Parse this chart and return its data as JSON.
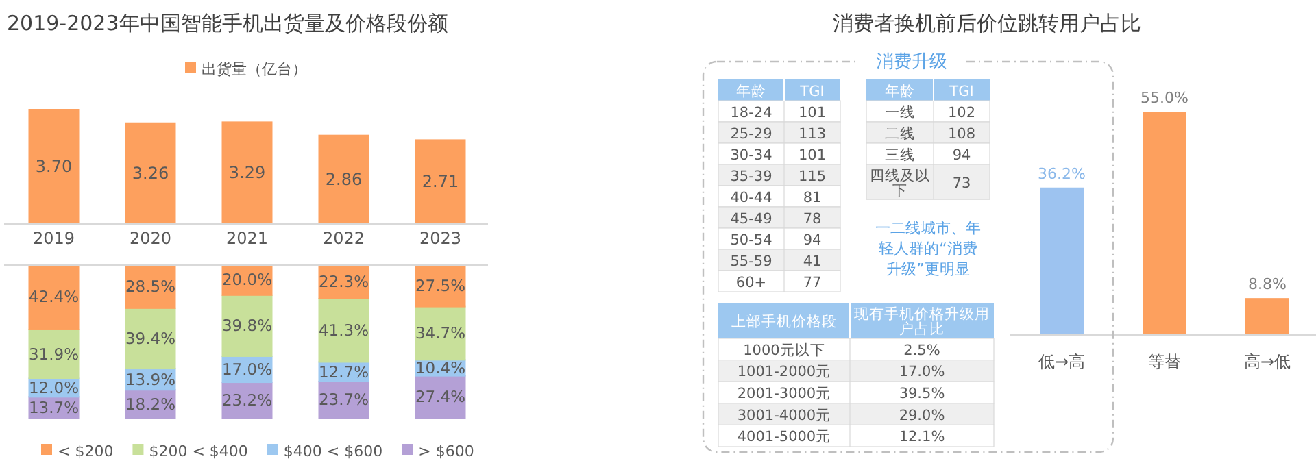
{
  "chart_data": [
    {
      "type": "bar",
      "title": "2019-2023年中国智能手机出货量及价格段份额",
      "categories": [
        null,
        null,
        null,
        null,
        null
      ],
      "legend": "top",
      "series": [
        {
          "name": "出货量（亿台）",
          "color": "#fda05e",
          "values": [
            3.7,
            3.26,
            3.29,
            2.86,
            2.71
          ],
          "value_labels": [
            "3.70",
            "3.26",
            "3.29",
            "2.86",
            "2.71"
          ]
        }
      ]
    },
    {
      "type": "bar",
      "stacked": true,
      "categories": [
        "2019",
        "2020",
        "2021",
        "2022",
        "2023"
      ],
      "legend": "bottom",
      "series": [
        {
          "name": "> $600",
          "color": "#b4a0d6",
          "values": [
            13.7,
            18.2,
            23.2,
            23.7,
            27.4
          ],
          "value_labels": [
            "13.7%",
            "18.2%",
            "23.2%",
            "23.7%",
            "27.4%"
          ]
        },
        {
          "name": "$400 < $600",
          "color": "#9dc8f0",
          "values": [
            12.0,
            13.9,
            17.0,
            12.7,
            10.4
          ],
          "value_labels": [
            "12.0%",
            "13.9%",
            "17.0%",
            "12.7%",
            "10.4%"
          ]
        },
        {
          "name": "$200 < $400",
          "color": "#c8e09a",
          "values": [
            31.9,
            39.4,
            39.8,
            41.3,
            34.7
          ],
          "value_labels": [
            "31.9%",
            "39.4%",
            "39.8%",
            "41.3%",
            "34.7%"
          ]
        },
        {
          "name": "< $200",
          "color": "#fda05e",
          "values": [
            42.4,
            28.5,
            20.0,
            22.3,
            27.5
          ],
          "value_labels": [
            "42.4%",
            "28.5%",
            "20.0%",
            "22.3%",
            "27.5%"
          ]
        }
      ]
    },
    {
      "type": "bar",
      "title": "消费者换机前后价位跳转用户占比",
      "categories": [
        "低→高",
        "等替",
        "高→低"
      ],
      "values": [
        36.2,
        55.0,
        8.8
      ],
      "colors": [
        "#9dc3f0",
        "#fda05e",
        "#fda05e"
      ],
      "value_labels": [
        "36.2%",
        "55.0%",
        "8.8%"
      ]
    },
    {
      "type": "other",
      "title": "消费升级",
      "annotations": [
        "一二线城市、年轻人群的“消费升级”更明显"
      ]
    },
    {
      "type": "other",
      "categories": [
        "年龄",
        "TGI"
      ],
      "y_categories": [
        "18-24",
        "25-29",
        "30-34",
        "35-39",
        "40-44",
        "45-49",
        "50-54",
        "55-59",
        "60+"
      ],
      "cell_labels": [
        [
          "101"
        ],
        [
          "113"
        ],
        [
          "101"
        ],
        [
          "115"
        ],
        [
          "81"
        ],
        [
          "78"
        ],
        [
          "94"
        ],
        [
          "41"
        ],
        [
          "77"
        ]
      ]
    },
    {
      "type": "other",
      "categories": [
        "年龄",
        "TGI"
      ],
      "y_categories": [
        "一线",
        "二线",
        "三线",
        "四线及以下"
      ],
      "cell_labels": [
        [
          "102"
        ],
        [
          "108"
        ],
        [
          "94"
        ],
        [
          "73"
        ]
      ]
    },
    {
      "type": "other",
      "categories": [
        "上部手机价格段",
        "现有手机价格升级用户占比"
      ],
      "y_categories": [
        "1000元以下",
        "1001-2000元",
        "2001-3000元",
        "3001-4000元",
        "4001-5000元"
      ],
      "cell_labels": [
        [
          "2.5%"
        ],
        [
          "17.0%"
        ],
        [
          "39.5%"
        ],
        [
          "29.0%"
        ],
        [
          "12.1%"
        ]
      ]
    }
  ]
}
